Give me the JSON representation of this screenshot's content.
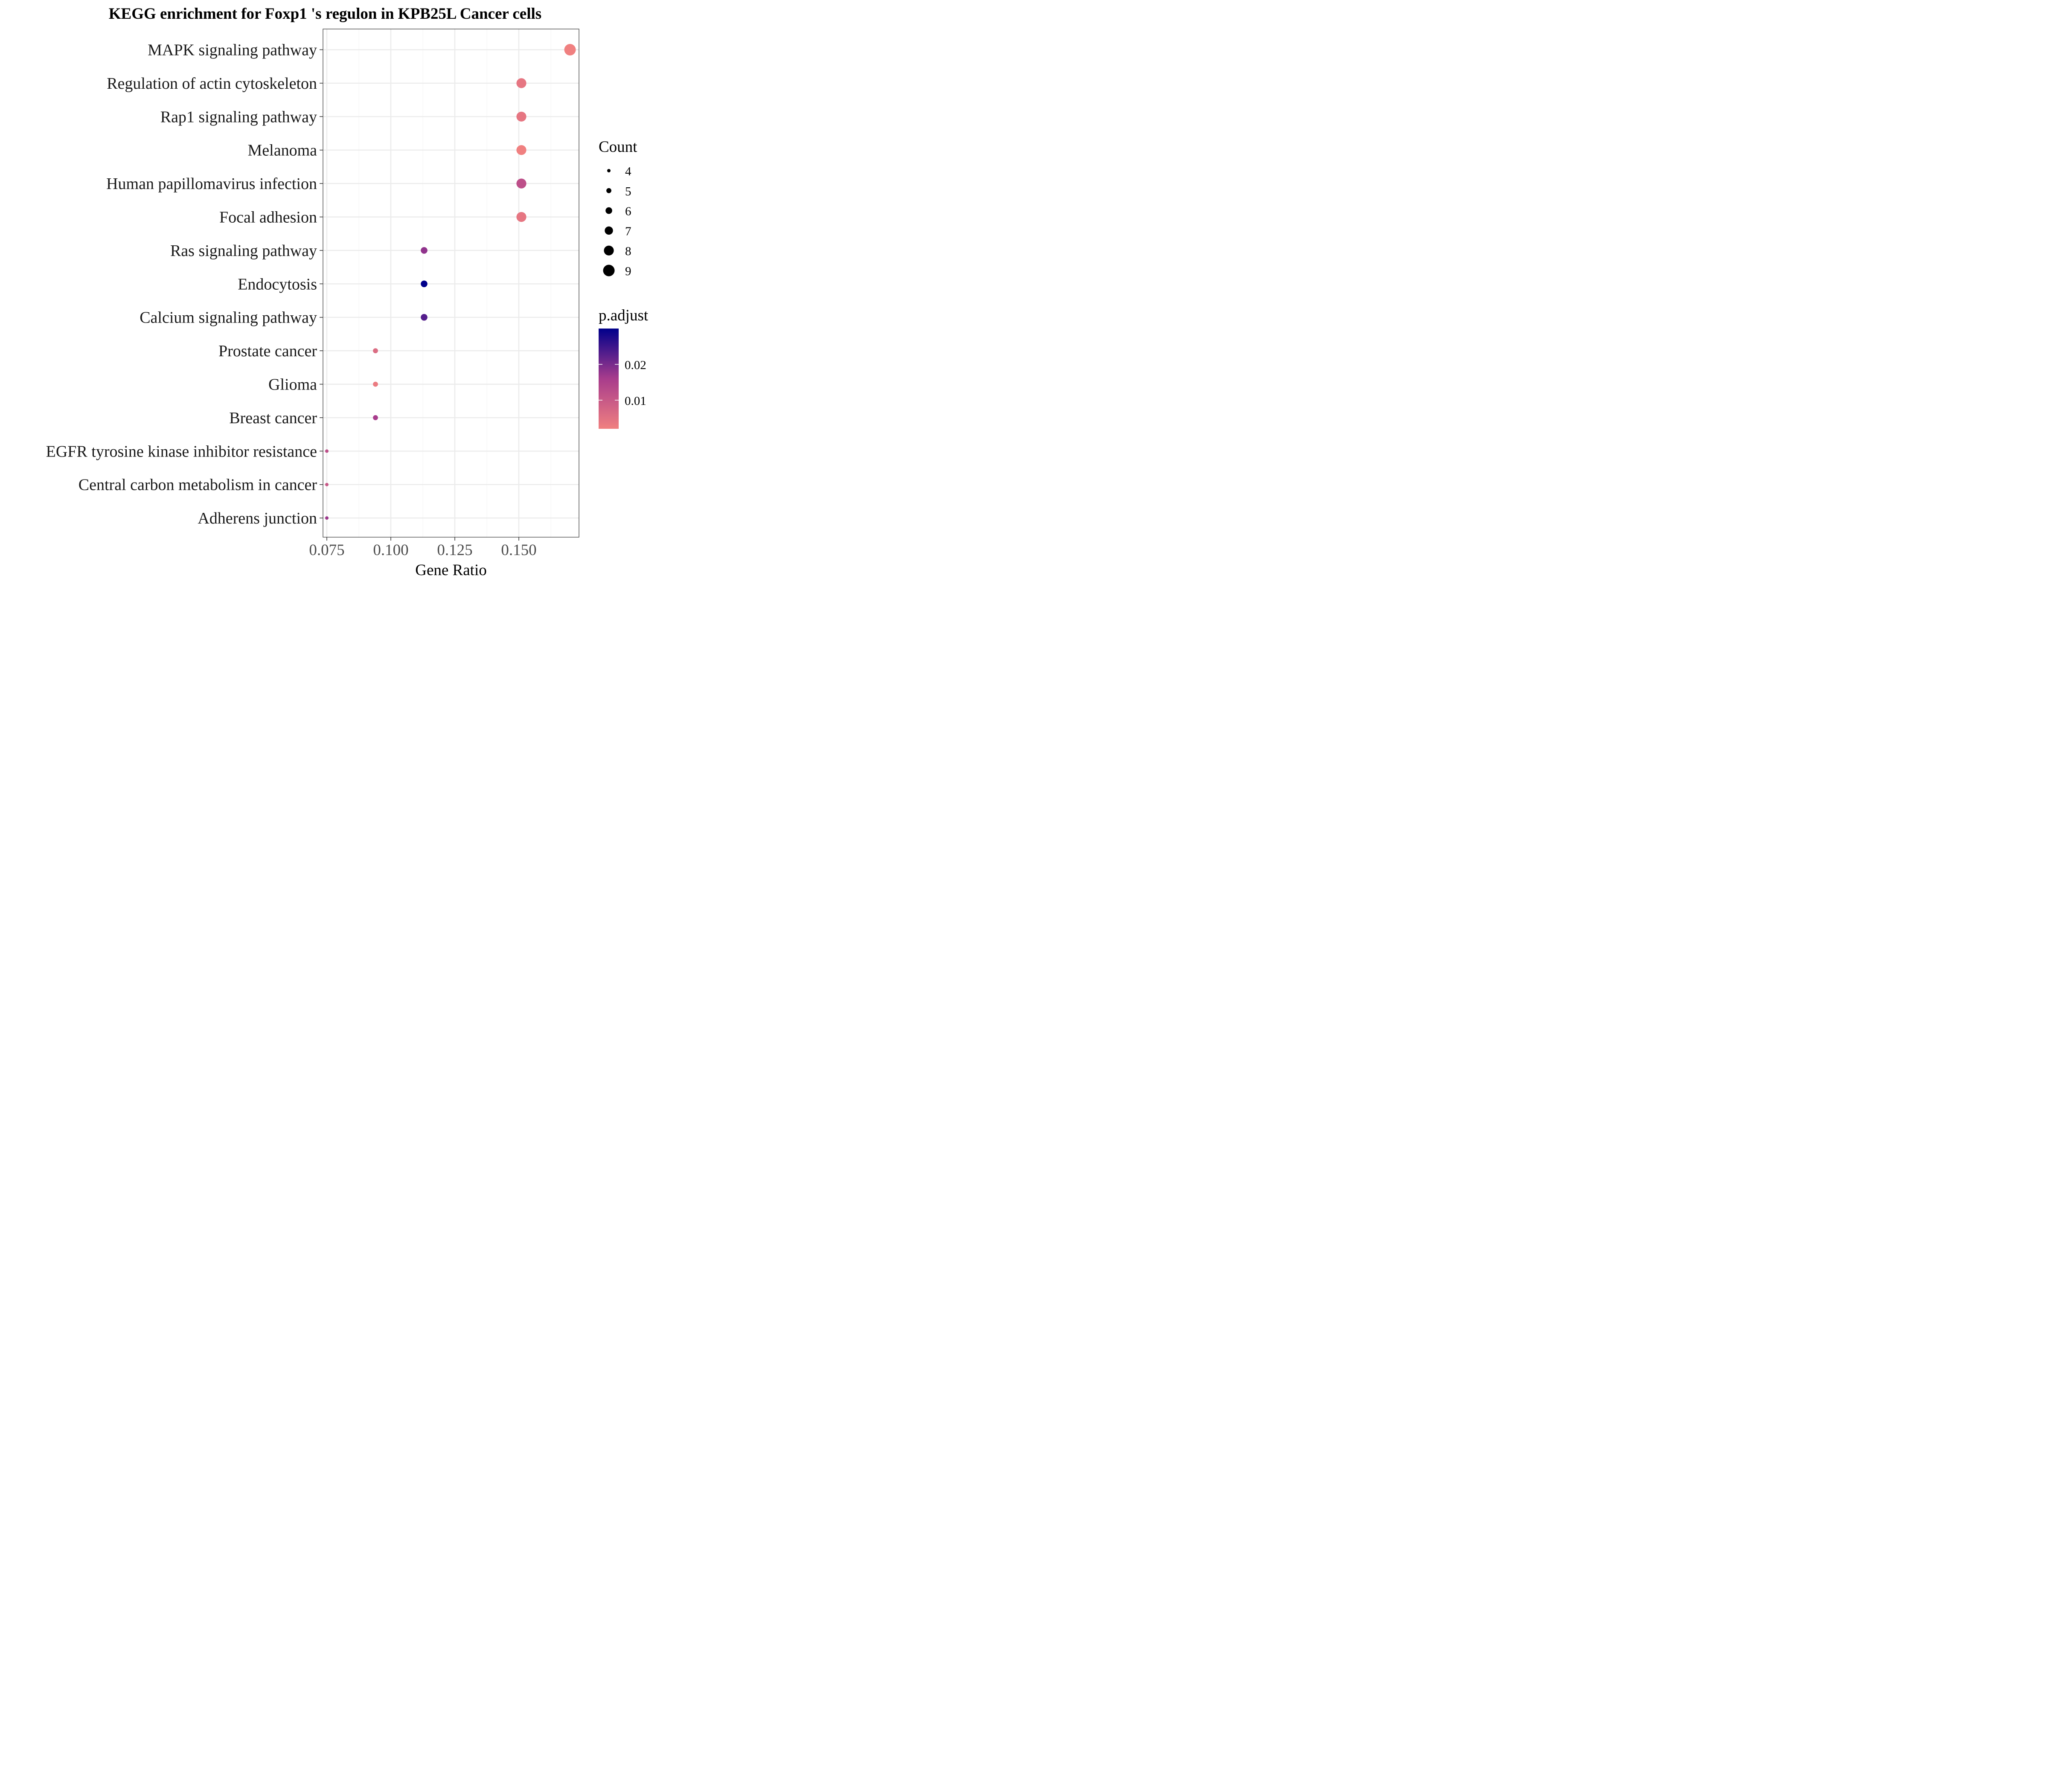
{
  "chart_data": {
    "type": "scatter",
    "title": "KEGG enrichment for Foxp1 's regulon in KPB25L Cancer cells",
    "xlabel": "Gene Ratio",
    "ylabel": "",
    "xlim": [
      0.0735,
      0.1735
    ],
    "x_ticks": [
      0.075,
      0.1,
      0.125,
      0.15
    ],
    "x_tick_labels": [
      "0.075",
      "0.100",
      "0.125",
      "0.150"
    ],
    "grid": true,
    "categories": [
      "MAPK signaling pathway",
      "Regulation of actin cytoskeleton",
      "Rap1 signaling pathway",
      "Melanoma",
      "Human papillomavirus infection",
      "Focal adhesion",
      "Ras signaling pathway",
      "Endocytosis",
      "Calcium signaling pathway",
      "Prostate cancer",
      "Glioma",
      "Breast cancer",
      "EGFR tyrosine kinase inhibitor resistance",
      "Central carbon metabolism in cancer",
      "Adherens junction"
    ],
    "points": [
      {
        "label": "MAPK signaling pathway",
        "gene_ratio": 0.17,
        "count": 9,
        "p_adjust": 0.002
      },
      {
        "label": "Regulation of actin cytoskeleton",
        "gene_ratio": 0.151,
        "count": 8,
        "p_adjust": 0.004
      },
      {
        "label": "Rap1 signaling pathway",
        "gene_ratio": 0.151,
        "count": 8,
        "p_adjust": 0.004
      },
      {
        "label": "Melanoma",
        "gene_ratio": 0.151,
        "count": 8,
        "p_adjust": 0.002
      },
      {
        "label": "Human papillomavirus infection",
        "gene_ratio": 0.151,
        "count": 8,
        "p_adjust": 0.012
      },
      {
        "label": "Focal adhesion",
        "gene_ratio": 0.151,
        "count": 8,
        "p_adjust": 0.004
      },
      {
        "label": "Ras signaling pathway",
        "gene_ratio": 0.113,
        "count": 6,
        "p_adjust": 0.018
      },
      {
        "label": "Endocytosis",
        "gene_ratio": 0.113,
        "count": 6,
        "p_adjust": 0.03
      },
      {
        "label": "Calcium signaling pathway",
        "gene_ratio": 0.113,
        "count": 6,
        "p_adjust": 0.023
      },
      {
        "label": "Prostate cancer",
        "gene_ratio": 0.094,
        "count": 5,
        "p_adjust": 0.006
      },
      {
        "label": "Glioma",
        "gene_ratio": 0.094,
        "count": 5,
        "p_adjust": 0.003
      },
      {
        "label": "Breast cancer",
        "gene_ratio": 0.094,
        "count": 5,
        "p_adjust": 0.016
      },
      {
        "label": "EGFR tyrosine kinase inhibitor resistance",
        "gene_ratio": 0.075,
        "count": 4,
        "p_adjust": 0.012
      },
      {
        "label": "Central carbon metabolism in cancer",
        "gene_ratio": 0.075,
        "count": 4,
        "p_adjust": 0.01
      },
      {
        "label": "Adherens junction",
        "gene_ratio": 0.075,
        "count": 4,
        "p_adjust": 0.017
      }
    ],
    "size_legend": {
      "title": "Count",
      "values": [
        4,
        5,
        6,
        7,
        8,
        9
      ]
    },
    "color_legend": {
      "title": "p.adjust",
      "range": [
        0.002,
        0.03
      ],
      "ticks": [
        0.01,
        0.02
      ],
      "tick_labels": [
        "0.01",
        "0.02"
      ],
      "low_color": "#f08080",
      "mid_color": "#a83c8c",
      "high_color": "#00008b"
    },
    "legend_position": "right",
    "colors": {
      "panel_border": "#333333",
      "grid_major": "#ebebeb",
      "grid_minor": "#f5f5f5"
    }
  }
}
